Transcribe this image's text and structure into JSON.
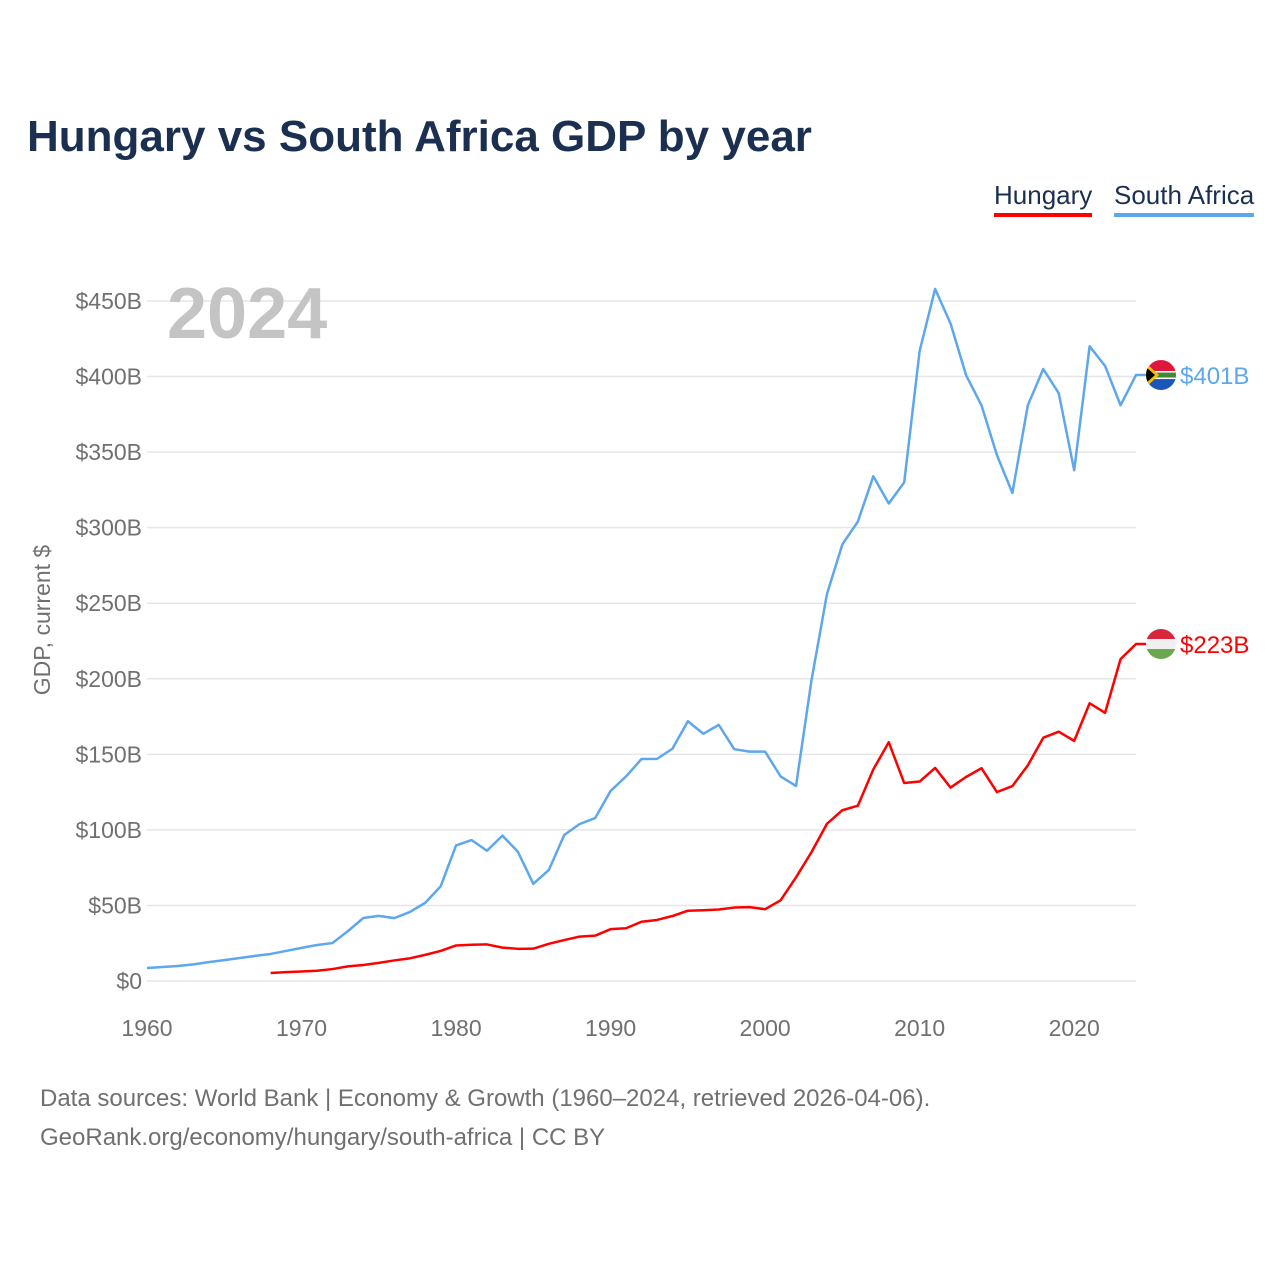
{
  "title": "Hungary vs South Africa GDP by year",
  "legend": [
    {
      "label": "Hungary",
      "color": "#ff0000"
    },
    {
      "label": "South Africa",
      "color": "#5ea7ec"
    }
  ],
  "year_watermark": "2024",
  "sources": {
    "line1": "Data sources: World Bank | Economy & Growth (1960–2024, retrieved 2026-04-06).",
    "line2": "GeoRank.org/economy/hungary/south-africa | CC BY"
  },
  "chart_data": {
    "type": "line",
    "title": "Hungary vs South Africa GDP by year",
    "xlabel": "",
    "ylabel": "GDP, current $",
    "xlim": [
      1960,
      2024
    ],
    "ylim": [
      0,
      450
    ],
    "x_ticks": [
      1960,
      1970,
      1980,
      1990,
      2000,
      2010,
      2020
    ],
    "y_ticks": [
      0,
      50,
      100,
      150,
      200,
      250,
      300,
      350,
      400,
      450
    ],
    "y_tick_labels": [
      "$0",
      "$50B",
      "$100B",
      "$150B",
      "$200B",
      "$250B",
      "$300B",
      "$350B",
      "$400B",
      "$450B"
    ],
    "grid": true,
    "legend_position": "top-right",
    "series": [
      {
        "name": "South Africa",
        "color": "#5ea7ec",
        "start_year": 1960,
        "end_label": "$401B",
        "flag": "south-africa",
        "values": [
          8.6,
          9.3,
          9.9,
          11,
          12.5,
          13.8,
          15.2,
          16.6,
          17.9,
          19.9,
          21.9,
          23.8,
          25.1,
          33,
          41.7,
          43.1,
          41.6,
          45.6,
          51.7,
          62.6,
          89.7,
          93.3,
          86.2,
          96.2,
          85.5,
          64.3,
          73.4,
          96.6,
          103.9,
          107.8,
          125.8,
          135.4,
          146.9,
          147,
          153.7,
          171.9,
          163.6,
          169.5,
          153.4,
          151.8,
          151.8,
          135.4,
          129.1,
          199,
          256,
          289,
          304,
          334,
          316,
          330,
          417,
          458,
          435,
          401,
          381,
          348,
          323,
          381,
          405,
          389,
          338,
          420,
          407,
          381,
          401
        ]
      },
      {
        "name": "Hungary",
        "color": "#ff0000",
        "start_year": 1968,
        "end_label": "$223B",
        "flag": "hungary",
        "values": [
          5.3,
          5.9,
          6.3,
          6.8,
          7.9,
          9.7,
          10.6,
          12,
          13.6,
          15,
          17.3,
          19.9,
          23.5,
          24,
          24.2,
          22.1,
          21.3,
          21.4,
          24.6,
          27.1,
          29.4,
          30,
          34.3,
          34.9,
          39.2,
          40.4,
          43,
          46.5,
          46.8,
          47.3,
          48.6,
          48.9,
          47.5,
          53.4,
          68.6,
          85.3,
          104,
          113,
          116,
          140,
          158,
          131,
          132,
          141,
          128,
          135,
          140.8,
          125,
          129,
          142.7,
          161,
          165,
          158.9,
          183.8,
          177.5,
          213,
          223
        ]
      }
    ]
  }
}
